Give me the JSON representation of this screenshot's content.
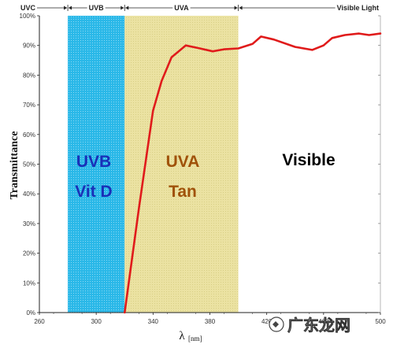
{
  "chart_data": {
    "type": "line",
    "xlabel": "λ",
    "xlabel_unit": "[nm]",
    "ylabel": "Transmittance",
    "xlim": [
      260,
      500
    ],
    "ylim": [
      0,
      100
    ],
    "x_ticks": [
      260,
      300,
      340,
      380,
      420,
      460,
      500
    ],
    "x_tick_labels": [
      "260",
      "300",
      "340",
      "380",
      "420",
      "460",
      "500"
    ],
    "y_ticks": [
      0,
      10,
      20,
      30,
      40,
      50,
      60,
      70,
      80,
      90,
      100
    ],
    "y_tick_labels": [
      "0%",
      "10%",
      "20%",
      "30%",
      "40%",
      "50%",
      "60%",
      "70%",
      "80%",
      "90%",
      "100%"
    ],
    "grid": false,
    "series": [
      {
        "color": "#e01b1b",
        "x": [
          320,
          330,
          340,
          346,
          353,
          363,
          373,
          382,
          390,
          400,
          410,
          416,
          425,
          440,
          452,
          460,
          466,
          475,
          485,
          492,
          500
        ],
        "y": [
          0,
          35,
          68,
          78,
          86,
          90,
          89,
          88,
          88.7,
          89,
          90.5,
          93,
          92,
          89.5,
          88.5,
          90,
          92.5,
          93.5,
          94,
          93.5,
          94
        ]
      }
    ],
    "regions": [
      {
        "label": "UVB",
        "sublabel": "Vit D",
        "x_start": 280,
        "x_end": 320,
        "fill": "#23b5e6",
        "text_color": "#1a2fb8"
      },
      {
        "label": "UVA",
        "sublabel": "Tan",
        "x_start": 320,
        "x_end": 400,
        "fill": "#ece3a3",
        "text_color": "#a0520a"
      },
      {
        "label": "Visible",
        "sublabel": "",
        "text_color": "#000000"
      }
    ],
    "top_bands": [
      {
        "label": "UVC",
        "x_start": 260,
        "x_end": 280
      },
      {
        "label": "UVB",
        "x_start": 280,
        "x_end": 320
      },
      {
        "label": "UVA",
        "x_start": 320,
        "x_end": 400
      },
      {
        "label": "Visible Light",
        "x_start": 400,
        "x_end": 500
      }
    ]
  },
  "watermark": {
    "text": "广东龙网"
  }
}
